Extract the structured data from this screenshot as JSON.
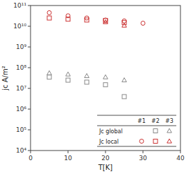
{
  "chart_data": {
    "type": "scatter",
    "xlabel": "T[K]",
    "ylabel": "jc A/m²",
    "log": "y",
    "grid": false,
    "legend": "lower right",
    "xlim": [
      0,
      40
    ],
    "xticks": [
      0,
      10,
      20,
      30,
      40
    ],
    "ylim": [
      10000,
      100000000000
    ],
    "yticks": [
      {
        "value": 10000,
        "label": "10⁴"
      },
      {
        "value": 100000,
        "label": "10⁵"
      },
      {
        "value": 1000000,
        "label": "10⁶"
      },
      {
        "value": 10000000,
        "label": "10⁷"
      },
      {
        "value": 100000000,
        "label": "10⁸"
      },
      {
        "value": 1000000000,
        "label": "10⁹"
      },
      {
        "value": 10000000000,
        "label": "10¹⁰"
      },
      {
        "value": 100000000000,
        "label": "10¹¹"
      }
    ],
    "legend_columns": [
      "#1",
      "#2",
      "#3"
    ],
    "legend_rows": [
      "Jc global",
      "Jc local"
    ],
    "series": [
      {
        "row": "Jc local",
        "column": "#1",
        "marker": "circle",
        "color": "#cc3333",
        "x": [
          5,
          10,
          15,
          20,
          25,
          30
        ],
        "values": [
          45000000000.0,
          32000000000.0,
          25000000000.0,
          20000000000.0,
          18000000000.0,
          14000000000.0
        ]
      },
      {
        "row": "Jc local",
        "column": "#2",
        "marker": "square",
        "color": "#cc3333",
        "x": [
          5,
          10,
          15,
          20,
          25
        ],
        "values": [
          25000000000.0,
          22000000000.0,
          20000000000.0,
          19000000000.0,
          15000000000.0
        ]
      },
      {
        "row": "Jc local",
        "column": "#3",
        "marker": "triangle",
        "color": "#cc3333",
        "x": [
          20,
          25
        ],
        "values": [
          16000000000.0,
          11000000000.0
        ]
      },
      {
        "row": "Jc global",
        "column": "#2",
        "marker": "square",
        "color": "#888888",
        "x": [
          5,
          10,
          15,
          20,
          25
        ],
        "values": [
          35000000.0,
          25000000.0,
          20000000.0,
          15000000.0,
          4000000.0
        ]
      },
      {
        "row": "Jc global",
        "column": "#3",
        "marker": "triangle",
        "color": "#888888",
        "x": [
          5,
          10,
          15,
          20,
          25
        ],
        "values": [
          55000000.0,
          48000000.0,
          40000000.0,
          35000000.0,
          25000000.0
        ]
      }
    ]
  }
}
